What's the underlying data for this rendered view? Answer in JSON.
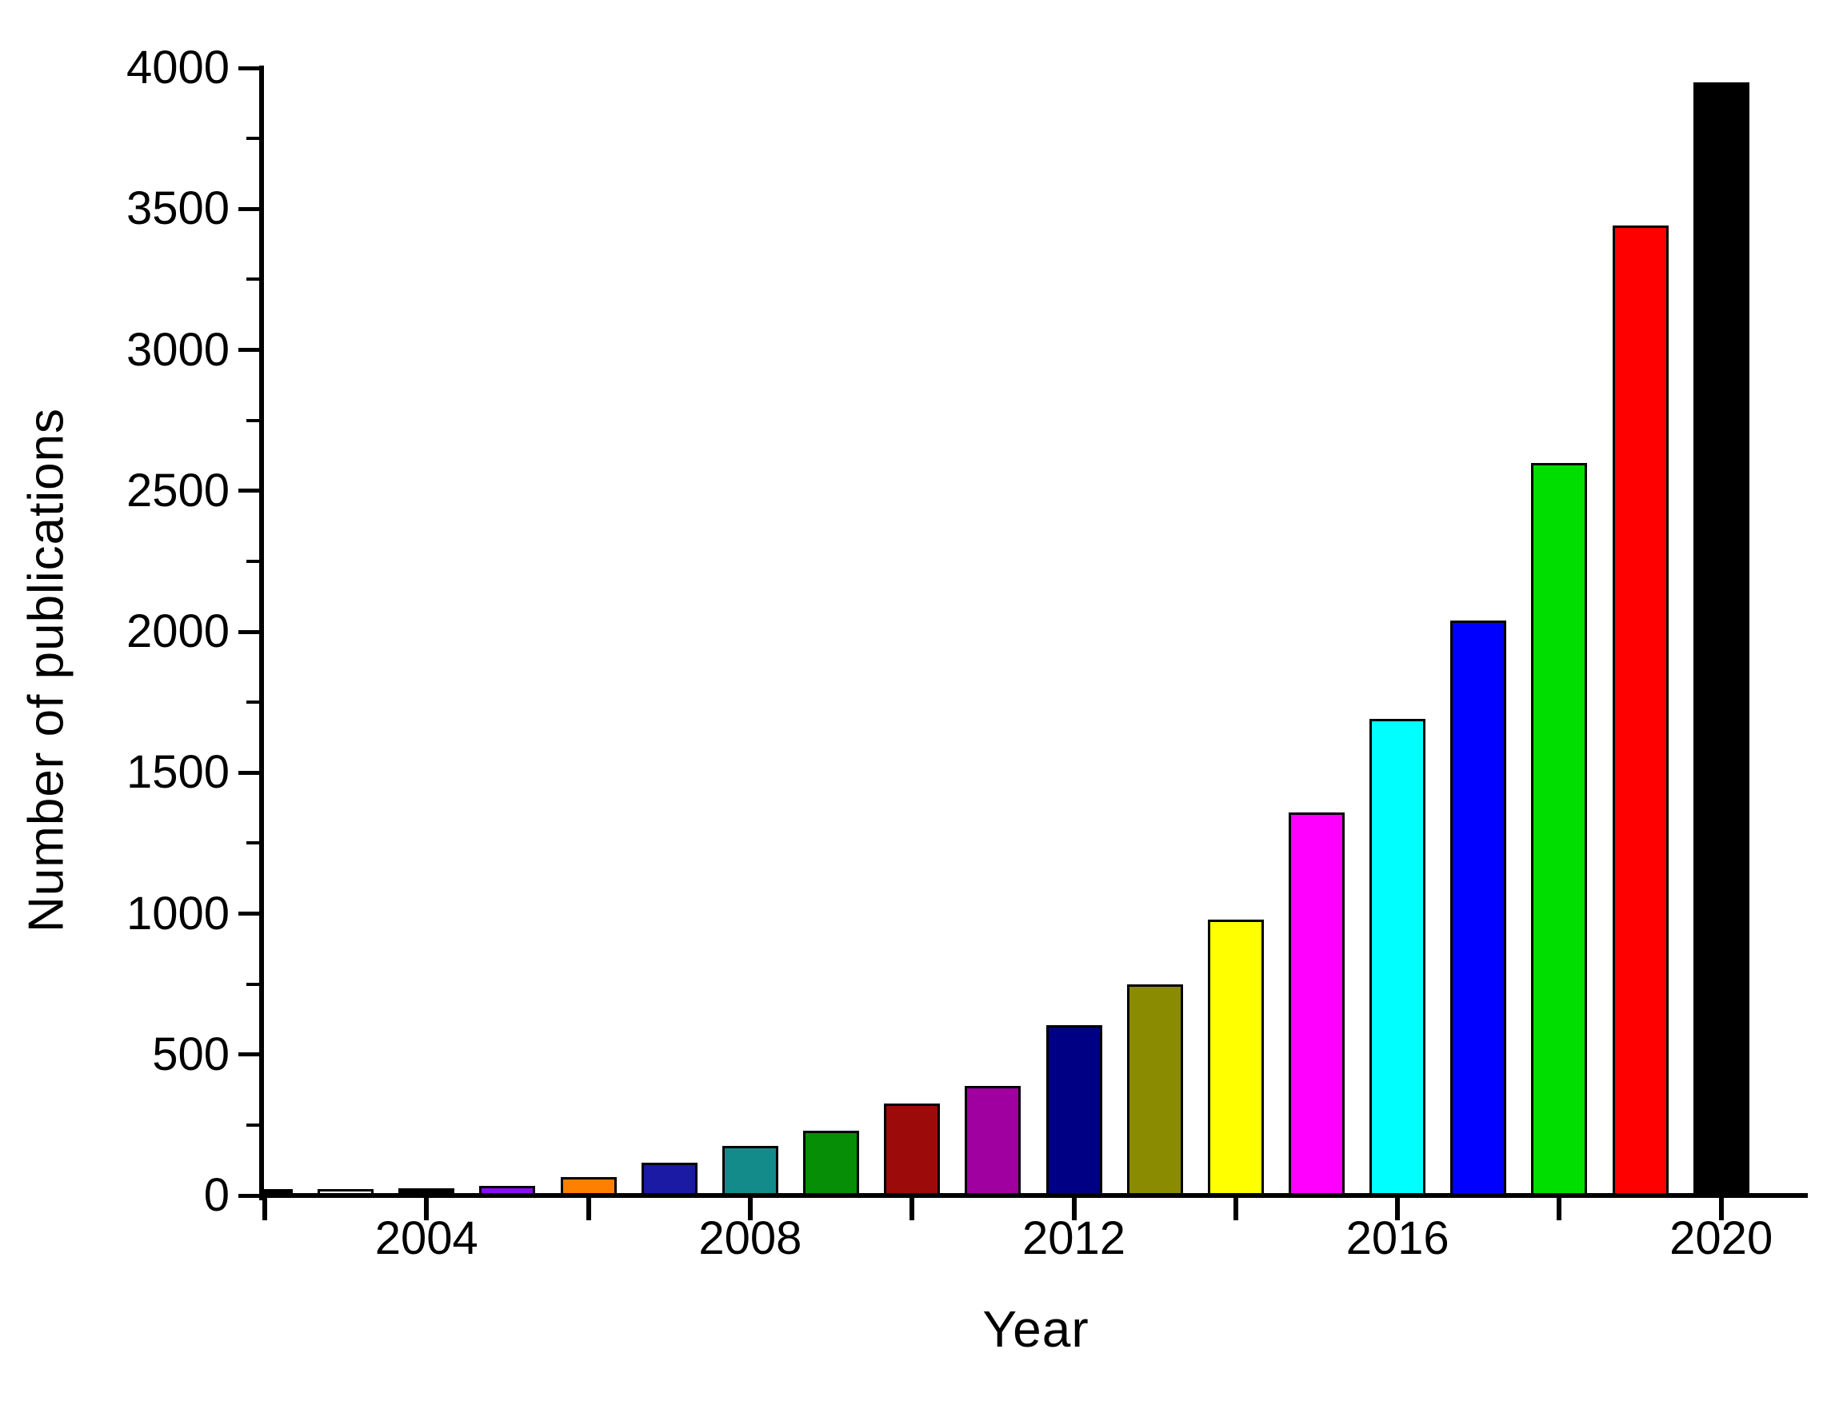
{
  "chart_data": {
    "type": "bar",
    "title": "",
    "xlabel": "Year",
    "ylabel": "Number of publications",
    "categories": [
      2002,
      2003,
      2004,
      2005,
      2006,
      2007,
      2008,
      2009,
      2010,
      2011,
      2012,
      2013,
      2014,
      2015,
      2016,
      2017,
      2018,
      2019,
      2020
    ],
    "values": [
      10,
      20,
      25,
      35,
      65,
      115,
      175,
      230,
      325,
      390,
      605,
      750,
      980,
      1360,
      1690,
      2040,
      2600,
      3440,
      3950
    ],
    "bar_colors": [
      "#000000",
      "#FFFFFF",
      "#000000",
      "#8B0DF0",
      "#FF8000",
      "#1A1AA4",
      "#148B8B",
      "#068E06",
      "#9C0A0A",
      "#A000A0",
      "#000084",
      "#8B8B00",
      "#FFFF00",
      "#FF00FF",
      "#00FFFF",
      "#0000FF",
      "#00DE00",
      "#FF0000",
      "#000000"
    ],
    "bar_outline_color": "#000000",
    "background_color": "#FFFFFF",
    "axis_color": "#000000",
    "ylim": [
      0,
      4000
    ],
    "y_major_ticks": [
      0,
      500,
      1000,
      1500,
      2000,
      2500,
      3000,
      3500,
      4000
    ],
    "y_major_tick_labels": [
      "0",
      "500",
      "1000",
      "1500",
      "2000",
      "2500",
      "3000",
      "3500",
      "4000"
    ],
    "y_minor_ticks": [
      250,
      750,
      1250,
      1750,
      2250,
      2750,
      3250,
      3750
    ],
    "x_tick_years": [
      2002,
      2004,
      2006,
      2008,
      2010,
      2012,
      2014,
      2016,
      2018,
      2020
    ],
    "x_labeled_ticks": [
      {
        "year": 2004,
        "label": "2004"
      },
      {
        "year": 2008,
        "label": "2008"
      },
      {
        "year": 2012,
        "label": "2012"
      },
      {
        "year": 2016,
        "label": "2016"
      },
      {
        "year": 2020,
        "label": "2020"
      }
    ],
    "grid": "off",
    "legend": "none"
  }
}
